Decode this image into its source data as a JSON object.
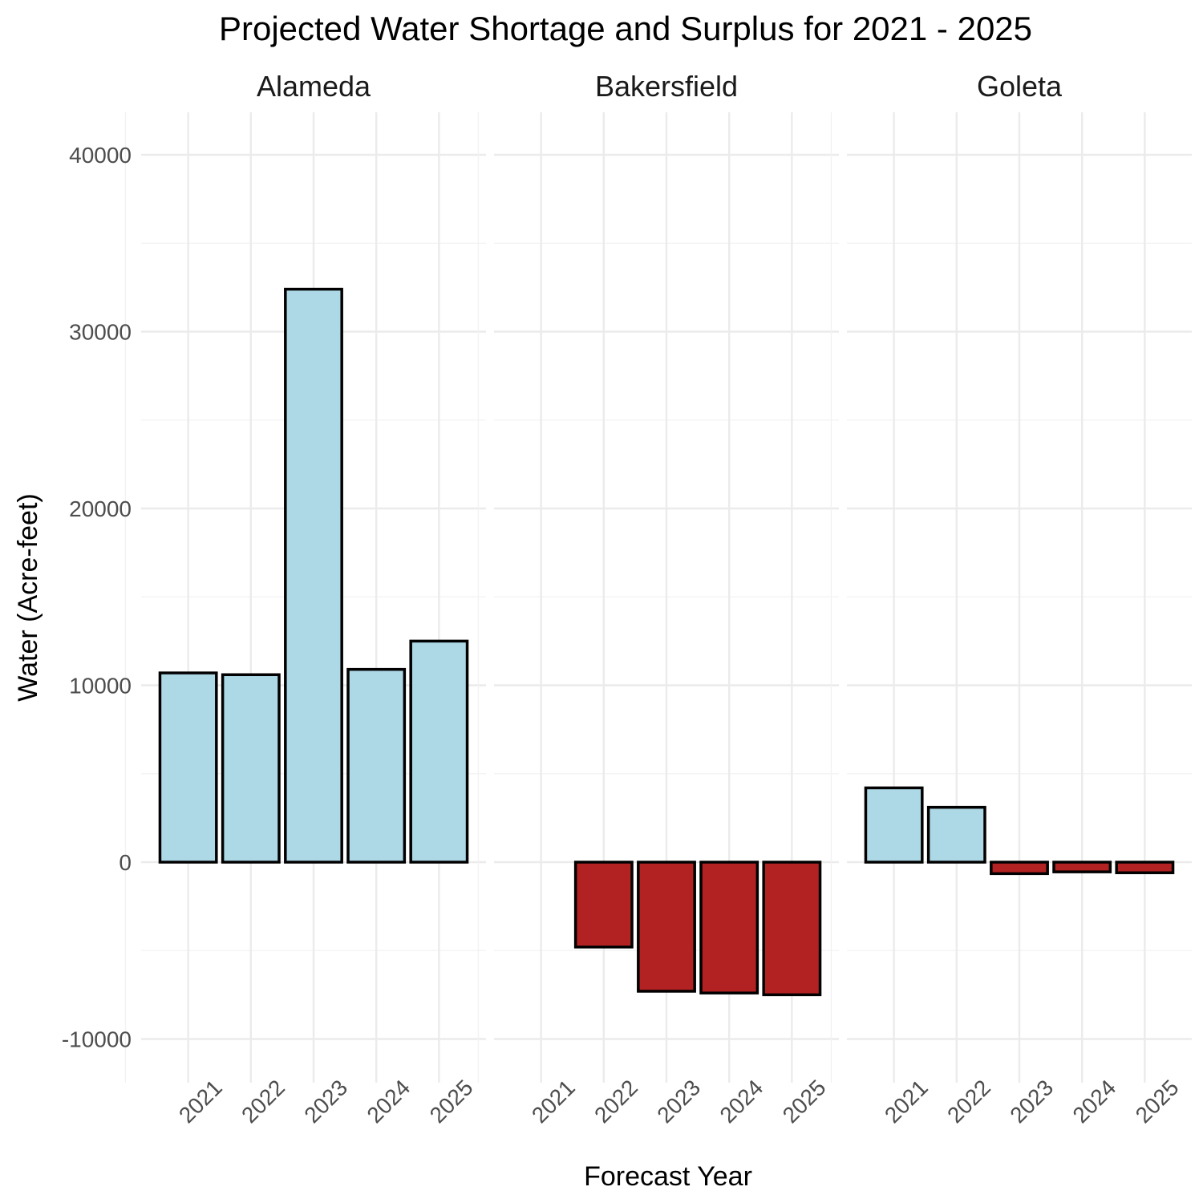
{
  "chart_data": {
    "type": "bar",
    "title": "Projected Water Shortage and Surplus for 2021 - 2025",
    "xlabel": "Forecast Year",
    "ylabel": "Water (Acre-feet)",
    "categories": [
      "2021",
      "2022",
      "2023",
      "2024",
      "2025"
    ],
    "ylim": [
      -12000,
      42000
    ],
    "y_ticks": [
      -10000,
      0,
      10000,
      20000,
      30000,
      40000
    ],
    "y_tick_labels": [
      "-10000",
      "0",
      "10000",
      "20000",
      "30000",
      "40000"
    ],
    "grid": true,
    "legend": "none",
    "colors": {
      "surplus": "#add8e6",
      "shortage": "#b22222",
      "outline": "#000000"
    },
    "facets": [
      {
        "name": "Alameda",
        "values": [
          10700,
          10600,
          32400,
          10900,
          12500
        ]
      },
      {
        "name": "Bakersfield",
        "values": [
          0,
          -4800,
          -7300,
          -7400,
          -7500
        ]
      },
      {
        "name": "Goleta",
        "values": [
          4200,
          3100,
          -650,
          -550,
          -600
        ]
      }
    ]
  }
}
